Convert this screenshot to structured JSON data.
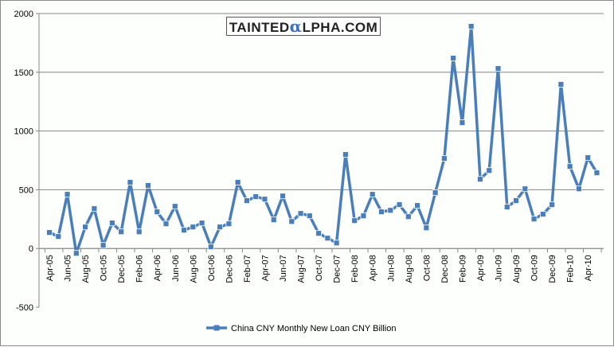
{
  "logo": {
    "pre": "TAINTED",
    "alpha": "α",
    "post": "LPHA.COM"
  },
  "chart_data": {
    "type": "line",
    "title": "",
    "xlabel": "",
    "ylabel": "",
    "ylim": [
      -500,
      2000
    ],
    "yticks": [
      -500,
      0,
      500,
      1000,
      1500,
      2000
    ],
    "grid": true,
    "legend_position": "bottom",
    "x": [
      "Apr-05",
      "May-05",
      "Jun-05",
      "Jul-05",
      "Aug-05",
      "Sep-05",
      "Oct-05",
      "Nov-05",
      "Dec-05",
      "Jan-06",
      "Feb-06",
      "Mar-06",
      "Apr-06",
      "May-06",
      "Jun-06",
      "Jul-06",
      "Aug-06",
      "Sep-06",
      "Oct-06",
      "Nov-06",
      "Dec-06",
      "Jan-07",
      "Feb-07",
      "Mar-07",
      "Apr-07",
      "May-07",
      "Jun-07",
      "Jul-07",
      "Aug-07",
      "Sep-07",
      "Oct-07",
      "Nov-07",
      "Dec-07",
      "Jan-08",
      "Feb-08",
      "Mar-08",
      "Apr-08",
      "May-08",
      "Jun-08",
      "Jul-08",
      "Aug-08",
      "Sep-08",
      "Oct-08",
      "Nov-08",
      "Dec-08",
      "Jan-09",
      "Feb-09",
      "Mar-09",
      "Apr-09",
      "May-09",
      "Jun-09",
      "Jul-09",
      "Aug-09",
      "Sep-09",
      "Oct-09",
      "Nov-09",
      "Dec-09",
      "Jan-10",
      "Feb-10",
      "Mar-10",
      "Apr-10",
      "May-10"
    ],
    "xtick_labels": [
      "Apr-05",
      "Jun-05",
      "Aug-05",
      "Oct-05",
      "Dec-05",
      "Feb-06",
      "Apr-06",
      "Jun-06",
      "Aug-06",
      "Oct-06",
      "Dec-06",
      "Feb-07",
      "Apr-07",
      "Jun-07",
      "Aug-07",
      "Oct-07",
      "Dec-07",
      "Feb-08",
      "Apr-08",
      "Jun-08",
      "Aug-08",
      "Oct-08",
      "Dec-08",
      "Feb-09",
      "Apr-09",
      "Jun-09",
      "Aug-09",
      "Oct-09",
      "Dec-09",
      "Feb-10",
      "Apr-10"
    ],
    "series": [
      {
        "name": "China CNY Monthly New Loan CNY Billion",
        "color": "#4a7ebb",
        "values": [
          136,
          102,
          461,
          -41,
          183,
          339,
          27,
          217,
          142,
          563,
          142,
          536,
          312,
          210,
          359,
          156,
          183,
          217,
          14,
          183,
          210,
          563,
          407,
          441,
          420,
          244,
          447,
          230,
          298,
          278,
          129,
          88,
          47,
          800,
          237,
          278,
          461,
          312,
          325,
          373,
          271,
          366,
          176,
          475,
          766,
          1620,
          1071,
          1891,
          590,
          664,
          1532,
          353,
          407,
          508,
          251,
          292,
          373,
          1397,
          698,
          508,
          773,
          644
        ]
      }
    ]
  }
}
